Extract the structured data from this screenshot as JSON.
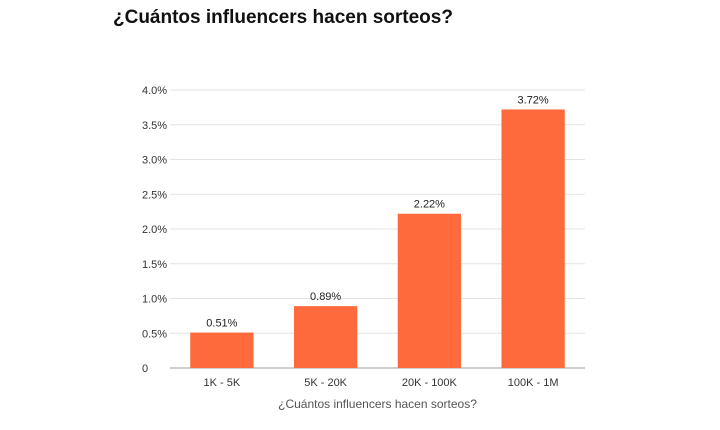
{
  "chart_data": {
    "type": "bar",
    "title": "¿Cuántos influencers hacen sorteos?",
    "categories": [
      "1K - 5K",
      "5K - 20K",
      "20K - 100K",
      "100K - 1M"
    ],
    "values": [
      0.51,
      0.89,
      2.22,
      3.72
    ],
    "value_labels": [
      "0.51%",
      "0.89%",
      "2.22%",
      "3.72%"
    ],
    "xlabel": "¿Cuántos influencers hacen sorteos?",
    "ylabel": "",
    "ylim": [
      0,
      4.0
    ],
    "yticks": [
      0,
      0.5,
      1.0,
      1.5,
      2.0,
      2.5,
      3.0,
      3.5,
      4.0
    ],
    "ytick_labels": [
      "0",
      "0.5%",
      "1.0%",
      "1.5%",
      "2.0%",
      "2.5%",
      "3.0%",
      "3.5%",
      "4.0%"
    ],
    "grid": true,
    "legend": "none",
    "colors": {
      "bar": "#ff6a3d"
    }
  }
}
